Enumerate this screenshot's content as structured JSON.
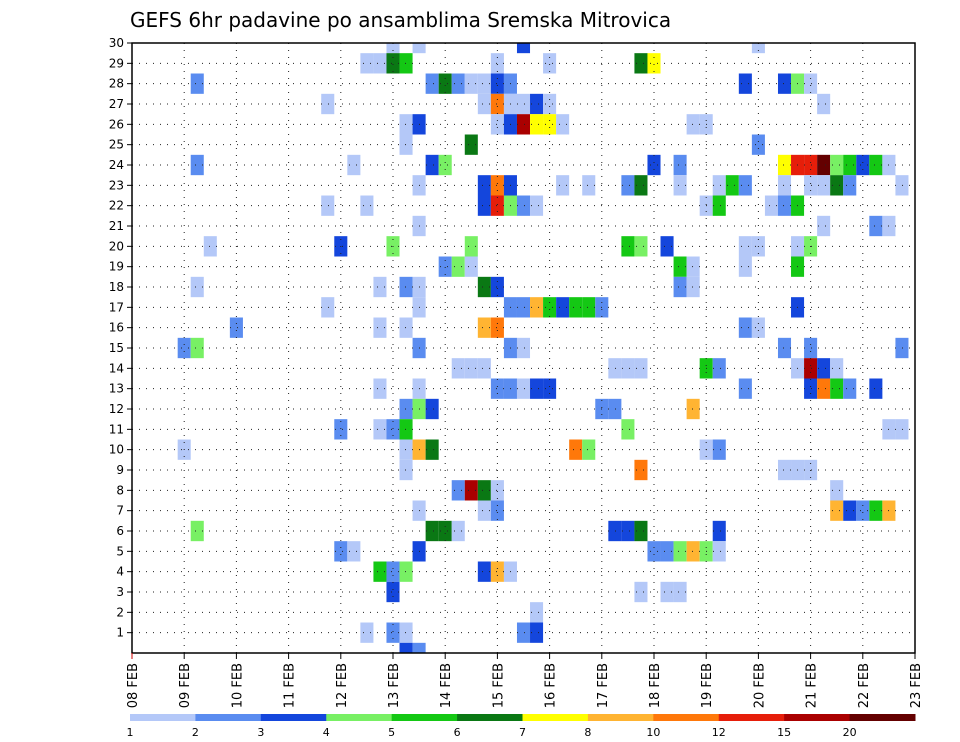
{
  "chart_data": {
    "type": "heatmap",
    "title": "GEFS 6hr padavine po ansamblima Sremska Mitrovica",
    "xlabel": "",
    "ylabel": "",
    "x_tick_labels": [
      "08 FEB",
      "09 FEB",
      "10 FEB",
      "11 FEB",
      "12 FEB",
      "13 FEB",
      "14 FEB",
      "15 FEB",
      "16 FEB",
      "17 FEB",
      "18 FEB",
      "19 FEB",
      "20 FEB",
      "21 FEB",
      "22 FEB",
      "23 FEB"
    ],
    "y_tick_labels": [
      "1",
      "2",
      "3",
      "4",
      "5",
      "6",
      "7",
      "8",
      "9",
      "10",
      "11",
      "12",
      "13",
      "14",
      "15",
      "16",
      "17",
      "18",
      "19",
      "20",
      "21",
      "22",
      "23",
      "24",
      "25",
      "26",
      "27",
      "28",
      "29",
      "30"
    ],
    "xlim_days": [
      8,
      23
    ],
    "ylim_members": [
      0,
      30
    ],
    "steps_per_day": 4,
    "colorbar": {
      "labels": [
        "1",
        "2",
        "3",
        "4",
        "5",
        "6",
        "7",
        "8",
        "10",
        "12",
        "15",
        "20"
      ],
      "colors": [
        "#b4c8f8",
        "#5a8cf0",
        "#1446dc",
        "#78f064",
        "#14c814",
        "#0a7814",
        "#ffff00",
        "#ffb432",
        "#ff780a",
        "#e61e0a",
        "#aa0000",
        "#640000"
      ]
    },
    "cells": [
      [
        30,
        13.0,
        0
      ],
      [
        30,
        13.5,
        0
      ],
      [
        30,
        15.5,
        2
      ],
      [
        30,
        20.0,
        0
      ],
      [
        29,
        12.5,
        0
      ],
      [
        29,
        12.75,
        0
      ],
      [
        29,
        13.0,
        5
      ],
      [
        29,
        13.25,
        4
      ],
      [
        29,
        15.0,
        0
      ],
      [
        29,
        16.0,
        0
      ],
      [
        29,
        17.75,
        5
      ],
      [
        29,
        18.0,
        6
      ],
      [
        28,
        9.25,
        1
      ],
      [
        28,
        13.75,
        1
      ],
      [
        28,
        14.0,
        5
      ],
      [
        28,
        14.25,
        1
      ],
      [
        28,
        14.5,
        0
      ],
      [
        28,
        14.75,
        0
      ],
      [
        28,
        15.0,
        2
      ],
      [
        28,
        15.25,
        1
      ],
      [
        28,
        19.75,
        2
      ],
      [
        28,
        20.5,
        2
      ],
      [
        28,
        20.75,
        3
      ],
      [
        28,
        21.0,
        0
      ],
      [
        27,
        11.75,
        0
      ],
      [
        27,
        14.75,
        0
      ],
      [
        27,
        15.0,
        8
      ],
      [
        27,
        15.25,
        0
      ],
      [
        27,
        15.5,
        0
      ],
      [
        27,
        15.75,
        2
      ],
      [
        27,
        16.0,
        0
      ],
      [
        27,
        21.25,
        0
      ],
      [
        26,
        13.25,
        0
      ],
      [
        26,
        13.5,
        2
      ],
      [
        26,
        15.0,
        0
      ],
      [
        26,
        15.25,
        2
      ],
      [
        26,
        15.5,
        10
      ],
      [
        26,
        15.75,
        6
      ],
      [
        26,
        16.0,
        6
      ],
      [
        26,
        16.25,
        0
      ],
      [
        26,
        18.75,
        0
      ],
      [
        26,
        19.0,
        0
      ],
      [
        25,
        13.25,
        0
      ],
      [
        25,
        14.5,
        5
      ],
      [
        25,
        20.0,
        1
      ],
      [
        24,
        9.25,
        1
      ],
      [
        24,
        12.25,
        0
      ],
      [
        24,
        13.75,
        2
      ],
      [
        24,
        14.0,
        3
      ],
      [
        24,
        18.0,
        2
      ],
      [
        24,
        18.5,
        1
      ],
      [
        24,
        20.5,
        6
      ],
      [
        24,
        20.75,
        9
      ],
      [
        24,
        21.0,
        9
      ],
      [
        24,
        21.25,
        11
      ],
      [
        24,
        21.5,
        3
      ],
      [
        24,
        21.75,
        4
      ],
      [
        24,
        22.0,
        2
      ],
      [
        24,
        22.25,
        4
      ],
      [
        24,
        22.5,
        0
      ],
      [
        23,
        13.5,
        0
      ],
      [
        23,
        14.75,
        2
      ],
      [
        23,
        15.0,
        8
      ],
      [
        23,
        15.25,
        2
      ],
      [
        23,
        16.25,
        0
      ],
      [
        23,
        16.75,
        0
      ],
      [
        23,
        17.5,
        1
      ],
      [
        23,
        17.75,
        5
      ],
      [
        23,
        18.5,
        0
      ],
      [
        23,
        19.25,
        0
      ],
      [
        23,
        19.5,
        4
      ],
      [
        23,
        19.75,
        1
      ],
      [
        23,
        20.5,
        0
      ],
      [
        23,
        21.0,
        0
      ],
      [
        23,
        21.25,
        0
      ],
      [
        23,
        21.5,
        5
      ],
      [
        23,
        21.75,
        1
      ],
      [
        23,
        22.75,
        0
      ],
      [
        22,
        11.75,
        0
      ],
      [
        22,
        12.5,
        0
      ],
      [
        22,
        14.75,
        2
      ],
      [
        22,
        15.0,
        9
      ],
      [
        22,
        15.25,
        3
      ],
      [
        22,
        15.5,
        1
      ],
      [
        22,
        15.75,
        0
      ],
      [
        22,
        19.0,
        0
      ],
      [
        22,
        19.25,
        4
      ],
      [
        22,
        20.25,
        0
      ],
      [
        22,
        20.5,
        1
      ],
      [
        22,
        20.75,
        4
      ],
      [
        21,
        13.5,
        0
      ],
      [
        21,
        21.25,
        0
      ],
      [
        21,
        22.25,
        1
      ],
      [
        21,
        22.5,
        0
      ],
      [
        20,
        9.5,
        0
      ],
      [
        20,
        12.0,
        2
      ],
      [
        20,
        13.0,
        3
      ],
      [
        20,
        14.5,
        3
      ],
      [
        20,
        17.5,
        4
      ],
      [
        20,
        17.75,
        3
      ],
      [
        20,
        18.25,
        2
      ],
      [
        20,
        19.75,
        0
      ],
      [
        20,
        20.0,
        0
      ],
      [
        20,
        20.75,
        0
      ],
      [
        20,
        21.0,
        3
      ],
      [
        19,
        14.0,
        1
      ],
      [
        19,
        14.25,
        3
      ],
      [
        19,
        14.5,
        0
      ],
      [
        19,
        18.5,
        4
      ],
      [
        19,
        18.75,
        0
      ],
      [
        19,
        19.75,
        0
      ],
      [
        19,
        20.75,
        4
      ],
      [
        18,
        9.25,
        0
      ],
      [
        18,
        12.75,
        0
      ],
      [
        18,
        13.25,
        1
      ],
      [
        18,
        13.5,
        0
      ],
      [
        18,
        14.75,
        5
      ],
      [
        18,
        15.0,
        2
      ],
      [
        18,
        18.5,
        1
      ],
      [
        18,
        18.75,
        0
      ],
      [
        17,
        11.75,
        0
      ],
      [
        17,
        13.5,
        0
      ],
      [
        17,
        15.25,
        1
      ],
      [
        17,
        15.5,
        1
      ],
      [
        17,
        15.75,
        7
      ],
      [
        17,
        16.0,
        4
      ],
      [
        17,
        16.25,
        2
      ],
      [
        17,
        16.5,
        4
      ],
      [
        17,
        16.75,
        4
      ],
      [
        17,
        17.0,
        1
      ],
      [
        17,
        20.75,
        2
      ],
      [
        16,
        10.0,
        1
      ],
      [
        16,
        12.75,
        0
      ],
      [
        16,
        13.25,
        0
      ],
      [
        16,
        14.75,
        7
      ],
      [
        16,
        15.0,
        8
      ],
      [
        16,
        19.75,
        1
      ],
      [
        16,
        20.0,
        0
      ],
      [
        15,
        9.0,
        1
      ],
      [
        15,
        9.25,
        3
      ],
      [
        15,
        13.5,
        1
      ],
      [
        15,
        15.25,
        1
      ],
      [
        15,
        15.5,
        0
      ],
      [
        15,
        20.5,
        1
      ],
      [
        15,
        21.0,
        1
      ],
      [
        15,
        22.75,
        1
      ],
      [
        14,
        14.25,
        0
      ],
      [
        14,
        14.5,
        0
      ],
      [
        14,
        14.75,
        0
      ],
      [
        14,
        17.25,
        0
      ],
      [
        14,
        17.5,
        0
      ],
      [
        14,
        17.75,
        0
      ],
      [
        14,
        19.0,
        4
      ],
      [
        14,
        19.25,
        1
      ],
      [
        14,
        20.75,
        0
      ],
      [
        14,
        21.0,
        10
      ],
      [
        14,
        21.25,
        2
      ],
      [
        14,
        21.5,
        0
      ],
      [
        13,
        12.75,
        0
      ],
      [
        13,
        13.5,
        0
      ],
      [
        13,
        15.0,
        1
      ],
      [
        13,
        15.25,
        1
      ],
      [
        13,
        15.5,
        0
      ],
      [
        13,
        15.75,
        2
      ],
      [
        13,
        16.0,
        2
      ],
      [
        13,
        19.75,
        1
      ],
      [
        13,
        21.0,
        2
      ],
      [
        13,
        21.25,
        8
      ],
      [
        13,
        21.5,
        4
      ],
      [
        13,
        21.75,
        1
      ],
      [
        13,
        22.25,
        2
      ],
      [
        12,
        13.25,
        1
      ],
      [
        12,
        13.5,
        3
      ],
      [
        12,
        13.75,
        2
      ],
      [
        12,
        17.0,
        1
      ],
      [
        12,
        17.25,
        1
      ],
      [
        12,
        18.75,
        7
      ],
      [
        11,
        12.0,
        1
      ],
      [
        11,
        12.75,
        0
      ],
      [
        11,
        13.0,
        1
      ],
      [
        11,
        13.25,
        4
      ],
      [
        11,
        17.5,
        3
      ],
      [
        11,
        22.5,
        0
      ],
      [
        11,
        22.75,
        0
      ],
      [
        10,
        9.0,
        0
      ],
      [
        10,
        13.25,
        0
      ],
      [
        10,
        13.5,
        7
      ],
      [
        10,
        13.75,
        5
      ],
      [
        10,
        16.5,
        8
      ],
      [
        10,
        16.75,
        3
      ],
      [
        10,
        19.0,
        0
      ],
      [
        10,
        19.25,
        1
      ],
      [
        9,
        13.25,
        0
      ],
      [
        9,
        17.75,
        8
      ],
      [
        9,
        20.5,
        0
      ],
      [
        9,
        20.75,
        0
      ],
      [
        9,
        21.0,
        0
      ],
      [
        8,
        14.25,
        1
      ],
      [
        8,
        14.5,
        10
      ],
      [
        8,
        14.75,
        5
      ],
      [
        8,
        15.0,
        0
      ],
      [
        8,
        21.5,
        0
      ],
      [
        7,
        13.5,
        0
      ],
      [
        7,
        14.75,
        0
      ],
      [
        7,
        15.0,
        1
      ],
      [
        7,
        21.5,
        7
      ],
      [
        7,
        21.75,
        2
      ],
      [
        7,
        22.0,
        1
      ],
      [
        7,
        22.25,
        4
      ],
      [
        7,
        22.5,
        7
      ],
      [
        6,
        9.25,
        3
      ],
      [
        6,
        13.75,
        5
      ],
      [
        6,
        14.0,
        5
      ],
      [
        6,
        14.25,
        0
      ],
      [
        6,
        17.25,
        2
      ],
      [
        6,
        17.5,
        2
      ],
      [
        6,
        17.75,
        5
      ],
      [
        6,
        19.25,
        2
      ],
      [
        5,
        12.0,
        1
      ],
      [
        5,
        12.25,
        0
      ],
      [
        5,
        13.5,
        2
      ],
      [
        5,
        18.0,
        1
      ],
      [
        5,
        18.25,
        1
      ],
      [
        5,
        18.5,
        3
      ],
      [
        5,
        18.75,
        7
      ],
      [
        5,
        19.0,
        3
      ],
      [
        5,
        19.25,
        0
      ],
      [
        4,
        12.75,
        4
      ],
      [
        4,
        13.0,
        1
      ],
      [
        4,
        13.25,
        3
      ],
      [
        4,
        14.75,
        2
      ],
      [
        4,
        15.0,
        7
      ],
      [
        4,
        15.25,
        0
      ],
      [
        3,
        13.0,
        2
      ],
      [
        3,
        17.75,
        0
      ],
      [
        3,
        18.25,
        0
      ],
      [
        3,
        18.5,
        0
      ],
      [
        2,
        15.75,
        0
      ],
      [
        1,
        12.5,
        0
      ],
      [
        1,
        13.0,
        1
      ],
      [
        1,
        13.25,
        0
      ],
      [
        1,
        15.5,
        1
      ],
      [
        1,
        15.75,
        2
      ],
      [
        0,
        13.25,
        2
      ],
      [
        0,
        13.5,
        1
      ]
    ]
  }
}
